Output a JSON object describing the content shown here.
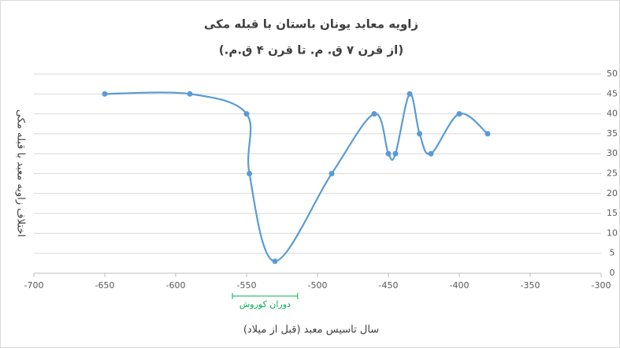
{
  "chart_data": {
    "type": "line",
    "smooth": true,
    "title": "زاویه معابد یونان باستان با قبله مکی",
    "subtitle": "(از قرن ۷ ق. م. تا قرن ۴ ق.م.)",
    "x_label": "سال تاسیس معبد (قبل از میلاد)",
    "y_label": "اختلاف زاویه معبد  با قبله مکی",
    "x": [
      -650,
      -590,
      -550,
      -548,
      -530,
      -490,
      -460,
      -450,
      -445,
      -435,
      -428,
      -420,
      -400,
      -380
    ],
    "series": [
      {
        "color": "#5b9bd5",
        "values": [
          45,
          45,
          40,
          25,
          3,
          25,
          40,
          30,
          30,
          45,
          35,
          30,
          40,
          35
        ]
      }
    ],
    "xlim": [
      -700,
      -300
    ],
    "xticks": [
      -700,
      -650,
      -600,
      -550,
      -500,
      -450,
      -400,
      -350,
      -300
    ],
    "ylim": [
      0,
      50
    ],
    "yticks": [
      0,
      5,
      10,
      15,
      20,
      25,
      30,
      35,
      40,
      45,
      50
    ],
    "y_axis_side": "right",
    "grid": true,
    "annotations": [
      {
        "text": "دوران کوروش",
        "x_range": [
          -560,
          -514
        ],
        "color": "#00b050"
      }
    ]
  }
}
